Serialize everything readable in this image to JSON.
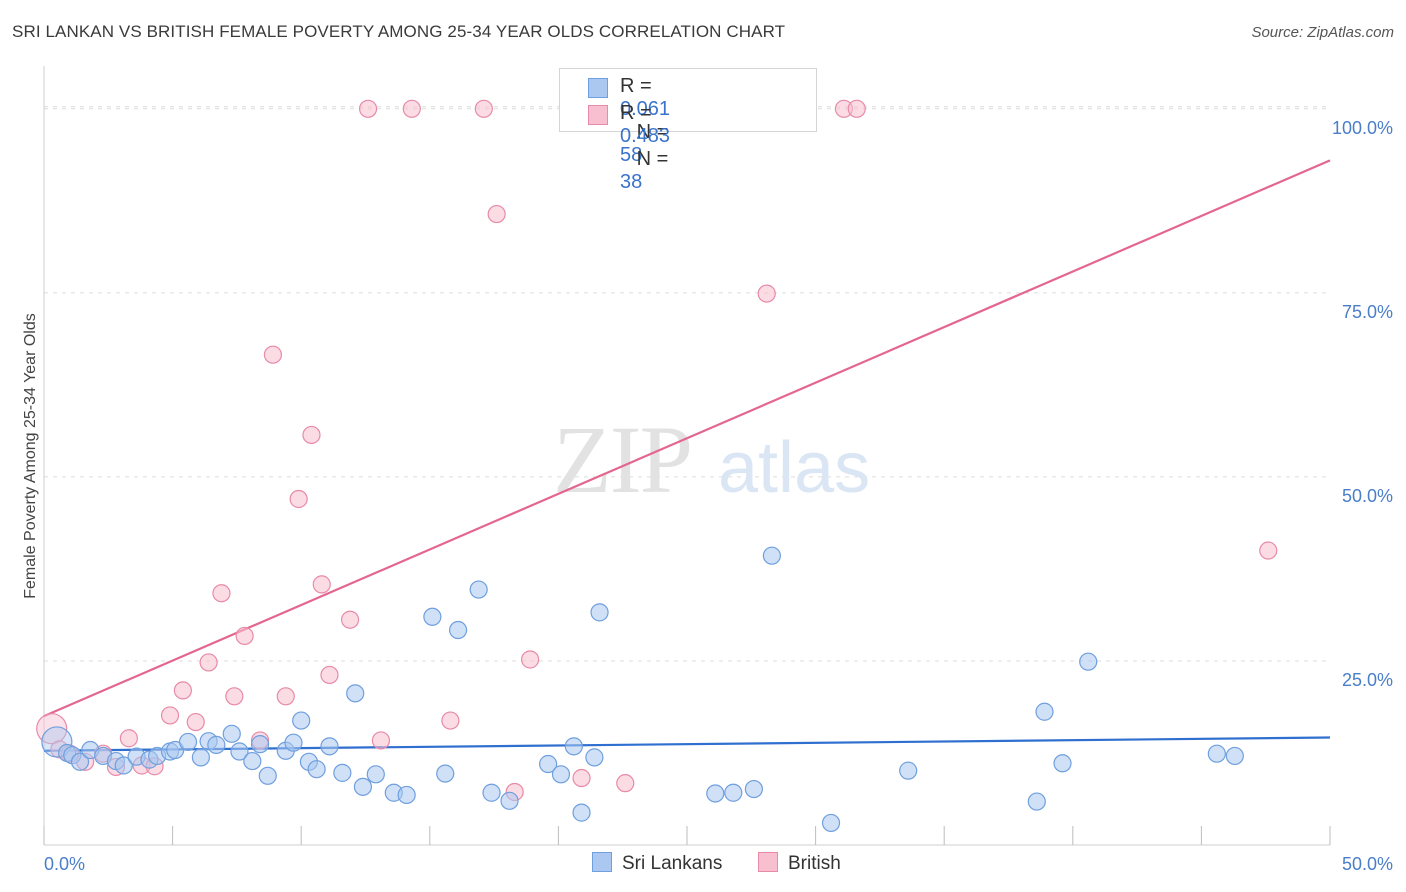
{
  "header": {
    "title": "SRI LANKAN VS BRITISH FEMALE POVERTY AMONG 25-34 YEAR OLDS CORRELATION CHART",
    "source": "Source: ZipAtlas.com"
  },
  "legend": {
    "rows": [
      {
        "r_label": "R =",
        "r_value": "0.061",
        "n_label": "N =",
        "n_value": "58"
      },
      {
        "r_label": "R =",
        "r_value": "0.483",
        "n_label": "N =",
        "n_value": "38"
      }
    ]
  },
  "bottom_legend": [
    "Sri Lankans",
    "British"
  ],
  "watermark": {
    "zip": "ZIP",
    "atlas": "atlas"
  },
  "colors": {
    "sri_lankans_fill": "#aac8f0",
    "sri_lankans_stroke": "#6f9fde",
    "sri_lankans_line": "#2f6fcf",
    "british_fill": "#f7bfd0",
    "british_stroke": "#e88aa8",
    "british_line": "#e4668f",
    "tick_text": "#4a7ec9"
  },
  "chart_data": {
    "type": "scatter",
    "title": "SRI LANKAN VS BRITISH FEMALE POVERTY AMONG 25-34 YEAR OLDS CORRELATION CHART",
    "xlabel": "",
    "ylabel": "Female Poverty Among 25-34 Year Olds",
    "xlim": [
      0,
      50
    ],
    "ylim": [
      0,
      105
    ],
    "x_tick_labels": [
      "0.0%",
      "50.0%"
    ],
    "y_ticks": [
      25,
      50,
      75,
      100
    ],
    "y_tick_labels": [
      "25.0%",
      "50.0%",
      "75.0%",
      "100.0%"
    ],
    "grid": true,
    "legend_position": "top-center",
    "series": [
      {
        "name": "Sri Lankans",
        "r": 0.061,
        "n": 58,
        "trend": {
          "x": [
            0,
            50
          ],
          "y": [
            12.8,
            14.6
          ]
        },
        "points": [
          [
            0.5,
            14
          ],
          [
            0.9,
            12.5
          ],
          [
            1.1,
            12.2
          ],
          [
            1.4,
            11.3
          ],
          [
            1.8,
            12.9
          ],
          [
            2.3,
            12.1
          ],
          [
            2.8,
            11.4
          ],
          [
            3.1,
            10.8
          ],
          [
            3.6,
            12.0
          ],
          [
            4.1,
            11.6
          ],
          [
            4.4,
            12.1
          ],
          [
            4.9,
            12.7
          ],
          [
            5.1,
            12.9
          ],
          [
            5.6,
            14.0
          ],
          [
            6.1,
            11.9
          ],
          [
            6.4,
            14.1
          ],
          [
            6.7,
            13.6
          ],
          [
            7.3,
            15.1
          ],
          [
            7.6,
            12.7
          ],
          [
            8.1,
            11.4
          ],
          [
            8.4,
            13.7
          ],
          [
            8.7,
            9.4
          ],
          [
            9.4,
            12.8
          ],
          [
            9.7,
            13.9
          ],
          [
            10.0,
            16.9
          ],
          [
            10.3,
            11.3
          ],
          [
            10.6,
            10.3
          ],
          [
            11.1,
            13.4
          ],
          [
            11.6,
            9.8
          ],
          [
            12.1,
            20.6
          ],
          [
            12.4,
            7.9
          ],
          [
            12.9,
            9.6
          ],
          [
            13.6,
            7.1
          ],
          [
            14.1,
            6.8
          ],
          [
            15.1,
            31.0
          ],
          [
            15.6,
            9.7
          ],
          [
            16.1,
            29.2
          ],
          [
            16.9,
            34.7
          ],
          [
            17.4,
            7.1
          ],
          [
            18.1,
            6.0
          ],
          [
            19.6,
            11.0
          ],
          [
            20.1,
            9.6
          ],
          [
            20.6,
            13.4
          ],
          [
            20.9,
            4.4
          ],
          [
            21.4,
            11.9
          ],
          [
            21.6,
            31.6
          ],
          [
            26.1,
            7.0
          ],
          [
            26.8,
            7.1
          ],
          [
            27.6,
            7.6
          ],
          [
            28.3,
            39.3
          ],
          [
            30.6,
            3.0
          ],
          [
            33.6,
            10.1
          ],
          [
            38.6,
            5.9
          ],
          [
            38.9,
            18.1
          ],
          [
            39.6,
            11.1
          ],
          [
            40.6,
            24.9
          ],
          [
            45.6,
            12.4
          ],
          [
            46.3,
            12.1
          ]
        ]
      },
      {
        "name": "British",
        "r": 0.483,
        "n": 38,
        "trend": {
          "x": [
            0,
            50
          ],
          "y": [
            17.5,
            93
          ]
        },
        "points": [
          [
            0.3,
            15.8
          ],
          [
            0.6,
            13.0
          ],
          [
            1.0,
            12.4
          ],
          [
            1.6,
            11.3
          ],
          [
            2.3,
            12.4
          ],
          [
            2.8,
            10.6
          ],
          [
            3.3,
            14.5
          ],
          [
            3.8,
            10.8
          ],
          [
            4.3,
            10.7
          ],
          [
            4.9,
            17.6
          ],
          [
            5.4,
            21.0
          ],
          [
            5.9,
            16.7
          ],
          [
            6.4,
            24.8
          ],
          [
            6.9,
            34.2
          ],
          [
            7.4,
            20.2
          ],
          [
            7.8,
            28.4
          ],
          [
            8.4,
            14.2
          ],
          [
            8.9,
            66.6
          ],
          [
            9.4,
            20.2
          ],
          [
            9.9,
            47.0
          ],
          [
            10.4,
            55.7
          ],
          [
            10.8,
            35.4
          ],
          [
            11.1,
            23.1
          ],
          [
            11.9,
            30.6
          ],
          [
            12.6,
            100
          ],
          [
            13.1,
            14.2
          ],
          [
            14.3,
            100
          ],
          [
            15.8,
            16.9
          ],
          [
            17.1,
            100
          ],
          [
            17.6,
            85.7
          ],
          [
            18.3,
            7.2
          ],
          [
            18.9,
            25.2
          ],
          [
            20.9,
            9.1
          ],
          [
            22.6,
            8.4
          ],
          [
            28.1,
            74.9
          ],
          [
            31.1,
            100
          ],
          [
            31.6,
            100
          ],
          [
            47.6,
            40.0
          ]
        ]
      }
    ]
  }
}
